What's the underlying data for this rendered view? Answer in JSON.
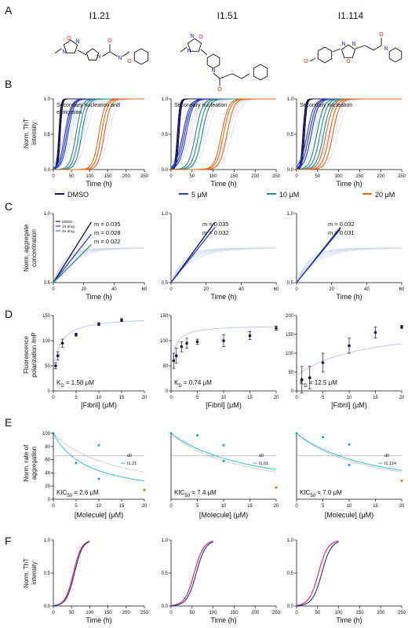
{
  "colors": {
    "dmso": "#16104f",
    "c5": "#2e3fb8",
    "c10": "#2a8a88",
    "c20": "#e86a1e",
    "ghost": "#c9d3ea",
    "kd": "#bcc8ec",
    "cyan": "#33bfd2",
    "gray": "#c4c4c4",
    "dot": "#1f9fb3",
    "panelF1": "#e0205a",
    "panelF2": "#2d2d9a"
  },
  "panel_labels": [
    "A",
    "B",
    "C",
    "D",
    "E",
    "F"
  ],
  "compounds": [
    {
      "name": "I1.21",
      "structure": "benzamide-pyrrolidine-oxadiazole"
    },
    {
      "name": "I1.51",
      "structure": "phenylbutanoyl-piperidine-oxadiazole"
    },
    {
      "name": "I1.114",
      "structure": "methoxyphenyl-oxadiazole-piperidine-amide"
    }
  ],
  "legend": [
    {
      "label": "DMSO",
      "color": "dmso"
    },
    {
      "label": "5 μM",
      "color": "c5"
    },
    {
      "label": "10 μM",
      "color": "c10"
    },
    {
      "label": "20 μM",
      "color": "c20"
    }
  ],
  "chart_data": [
    {
      "panel": "B",
      "type": "line",
      "ylabel": "Norm. ThT intensity",
      "xlabel": "Time (h)",
      "xlim": [
        0,
        250
      ],
      "ylim": [
        0,
        1.0
      ],
      "xticks": [
        "0",
        "50",
        "100",
        "150",
        "200",
        "250"
      ],
      "yticks": [
        "0.0",
        "0.5",
        "1.0"
      ],
      "annotations": [
        "Secondary nucleation and elongation",
        "Secondary nucleation",
        "Secondary nucleation"
      ],
      "series": [
        {
          "name": "DMSO",
          "color": "dmso",
          "midpoints": [
            [
              15,
              17,
              19
            ],
            [
              15,
              17,
              19
            ],
            [
              15,
              17,
              19
            ]
          ]
        },
        {
          "name": "5 μM",
          "color": "c5",
          "midpoints": [
            [
              32,
              36,
              40
            ],
            [
              28,
              32,
              36
            ],
            [
              25,
              30,
              35
            ]
          ]
        },
        {
          "name": "10 μM",
          "color": "c10",
          "midpoints": [
            [
              62,
              70,
              78
            ],
            [
              58,
              66,
              74
            ],
            [
              48,
              56,
              64
            ]
          ]
        },
        {
          "name": "20 μM",
          "color": "c20",
          "midpoints": [
            [
              125,
              132,
              140
            ],
            [
              120,
              125,
              133
            ],
            [
              70,
              78,
              86
            ]
          ]
        }
      ]
    },
    {
      "panel": "C",
      "type": "line",
      "ylabel": "Norm. aggregate concentration",
      "xlabel": "Time (h)",
      "xlim": [
        0,
        60
      ],
      "ylim": [
        0.5,
        1.5
      ],
      "xticks": [
        "0",
        "20",
        "40",
        "60"
      ],
      "yticks": [
        "0.5",
        "1.0"
      ],
      "legend": [
        "DMSO",
        "1X drug",
        "2X drug"
      ],
      "slopes": [
        {
          "values": [
            0.035,
            0.028,
            0.022
          ],
          "labels": [
            "m = 0.035",
            "m = 0.028",
            "m = 0.022"
          ]
        },
        {
          "values": [
            0.035,
            0.032
          ],
          "labels": [
            "m = 0.035",
            "m = 0.032"
          ]
        },
        {
          "values": [
            0.032,
            0.031
          ],
          "labels": [
            "m = 0.032",
            "m = 0.031"
          ]
        }
      ]
    },
    {
      "panel": "D",
      "type": "scatter",
      "ylabel": "Fluorescence polarization /mP",
      "xlabel": "[Fibril] (μM)",
      "xlim": [
        0,
        20
      ],
      "xticks": [
        "0",
        "5",
        "10",
        "15",
        "20"
      ],
      "plots": [
        {
          "ylim": [
            0,
            150
          ],
          "yticks": [
            "0",
            "50",
            "100",
            "150"
          ],
          "kd_label": "K",
          "kd_sub": "D",
          "kd_rest": " = 1.58 μM",
          "x": [
            0.5,
            1,
            2,
            5,
            10,
            15
          ],
          "y": [
            50,
            70,
            95,
            112,
            133,
            141
          ],
          "err": [
            6,
            8,
            8,
            3,
            3,
            3
          ]
        },
        {
          "ylim": [
            0,
            150
          ],
          "yticks": [
            "0",
            "50",
            "100",
            "150"
          ],
          "kd_label": "K",
          "kd_sub": "D",
          "kd_rest": " = 0.74 μM",
          "x": [
            0.5,
            1,
            2,
            3,
            5,
            10,
            15,
            20
          ],
          "y": [
            60,
            70,
            88,
            95,
            98,
            100,
            110,
            125
          ],
          "err": [
            15,
            15,
            10,
            10,
            5,
            12,
            8,
            4
          ]
        },
        {
          "ylim": [
            0,
            200
          ],
          "yticks": [
            "0",
            "50",
            "100",
            "150",
            "200"
          ],
          "kd_label": "K",
          "kd_sub": "D",
          "kd_rest": " = 12.5 μM",
          "x": [
            1,
            2.5,
            5,
            10,
            15,
            20
          ],
          "y": [
            30,
            35,
            75,
            120,
            155,
            170
          ],
          "err": [
            35,
            30,
            25,
            20,
            15,
            4
          ]
        }
      ]
    },
    {
      "panel": "E",
      "type": "scatter",
      "ylabel": "Norm. rate of aggregation",
      "xlabel": "[Molecule] (μM)",
      "xlim": [
        0,
        20
      ],
      "ylim": [
        0,
        100
      ],
      "xticks": [
        "0",
        "5",
        "10",
        "15",
        "20"
      ],
      "yticks": [
        "0",
        "20",
        "40",
        "60",
        "80",
        "100"
      ],
      "plots": [
        {
          "kic": "KIC",
          "kic_sub": "50",
          "kic_rest": " = 2.6 μM",
          "legend": [
            "d0",
            "I1.21"
          ],
          "points": [
            [
              0,
              100
            ],
            [
              5,
              55
            ],
            [
              10,
              82
            ],
            [
              10,
              31
            ],
            [
              20,
              14
            ]
          ]
        },
        {
          "kic": "KIC",
          "kic_sub": "50",
          "kic_rest": " = 7.4 μM",
          "legend": [
            "d0",
            "I1.51"
          ],
          "points": [
            [
              0,
              100
            ],
            [
              5,
              97
            ],
            [
              10,
              82
            ],
            [
              10,
              58
            ],
            [
              20,
              18
            ]
          ]
        },
        {
          "kic": "KIC",
          "kic_sub": "50",
          "kic_rest": " = 7.0 μM",
          "legend": [
            "d0",
            "I1.114"
          ],
          "points": [
            [
              0,
              100
            ],
            [
              5,
              94
            ],
            [
              10,
              83
            ],
            [
              10,
              52
            ],
            [
              20,
              28
            ]
          ]
        }
      ]
    },
    {
      "panel": "F",
      "type": "line",
      "ylabel": "Norm. ThT intensity",
      "xlabel": "Time (h)",
      "xlim": [
        0,
        250
      ],
      "ylim": [
        0,
        1.0
      ],
      "xticks": [
        "0",
        "50",
        "100",
        "150",
        "200",
        "250"
      ],
      "yticks": [
        "0.0",
        "0.5",
        "1.0"
      ],
      "plots": [
        {
          "midpoints": [
            55,
            58
          ]
        },
        {
          "midpoints": [
            55,
            60
          ]
        },
        {
          "midpoints": [
            52,
            60
          ]
        }
      ]
    }
  ]
}
